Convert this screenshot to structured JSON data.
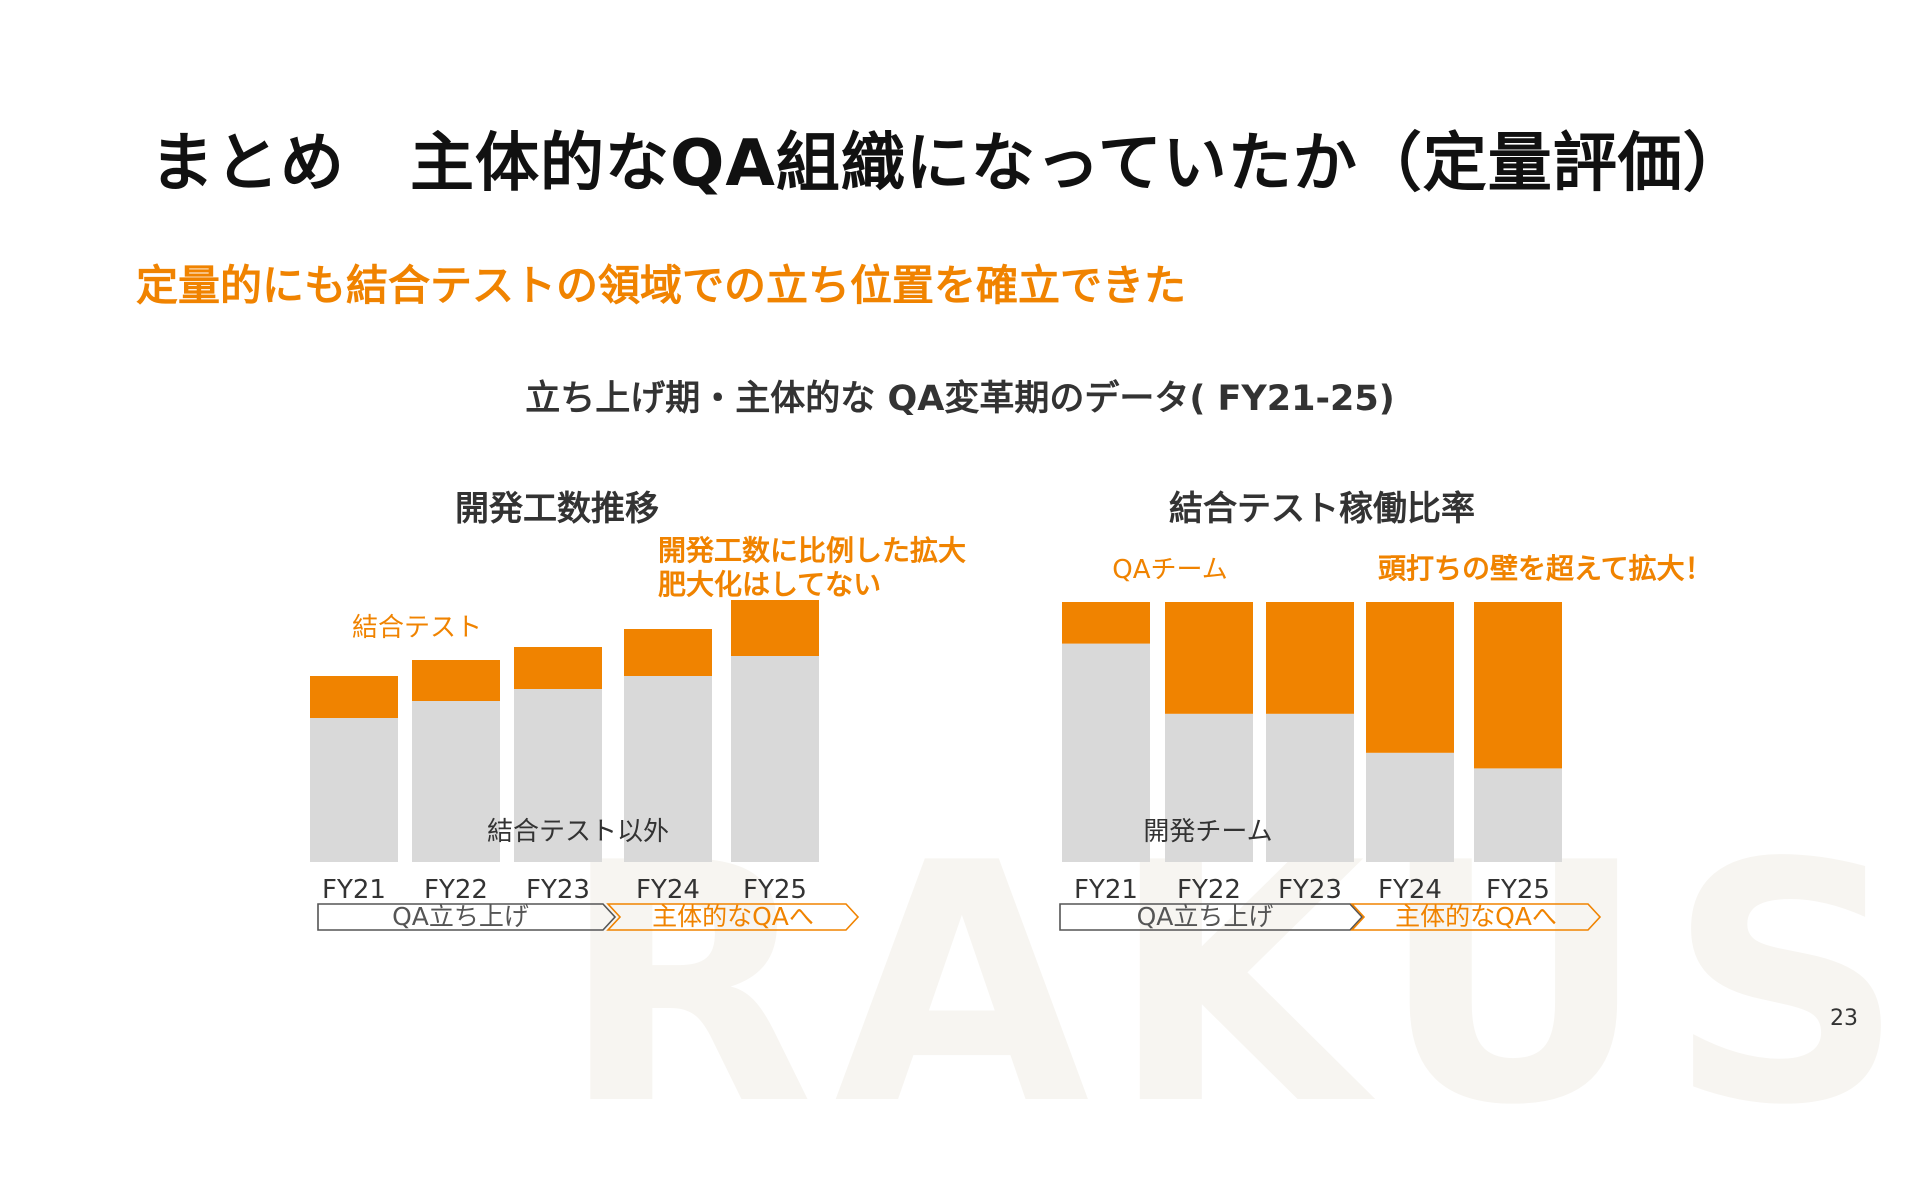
{
  "slide": {
    "title": "まとめ　主体的なQA組織になっていたか（定量評価）",
    "subtitle": "定量的にも結合テストの領域での立ち位置を確立できた",
    "data_title": "立ち上げ期・主体的な QA変革期のデータ( FY21-25)",
    "page_number": "23",
    "watermark": "RAKUS"
  },
  "colors": {
    "accent": "#f08300",
    "bar_gray": "#d9d9d9",
    "title": "#111111",
    "text": "#333333"
  },
  "chart_data": [
    {
      "type": "bar",
      "stacked": true,
      "title": "開発工数推移",
      "categories": [
        "FY21",
        "FY22",
        "FY23",
        "FY24",
        "FY25"
      ],
      "series": [
        {
          "name": "結合テスト以外",
          "color": "#d9d9d9",
          "values": [
            144,
            161,
            173,
            186,
            206
          ]
        },
        {
          "name": "結合テスト",
          "color": "#f08300",
          "values": [
            42,
            41,
            42,
            47,
            56
          ]
        }
      ],
      "ylim": [
        0,
        270
      ],
      "annotations": [
        "開発工数に比例した拡大",
        "肥大化はしてない"
      ],
      "phases": [
        {
          "label": "QA立ち上げ",
          "style": "outline-gray"
        },
        {
          "label": "主体的なQAへ",
          "style": "outline-orange"
        }
      ]
    },
    {
      "type": "bar",
      "stacked": true,
      "title": "結合テスト稼働比率",
      "categories": [
        "FY21",
        "FY22",
        "FY23",
        "FY24",
        "FY25"
      ],
      "series": [
        {
          "name": "開発チーム",
          "color": "#d9d9d9",
          "values": [
            84,
            57,
            57,
            42,
            36
          ]
        },
        {
          "name": "QAチーム",
          "color": "#f08300",
          "values": [
            16,
            43,
            43,
            58,
            64
          ]
        }
      ],
      "ylim": [
        0,
        100
      ],
      "annotations": [
        "頭打ちの壁を超えて拡大！"
      ],
      "phases": [
        {
          "label": "QA立ち上げ",
          "style": "outline-gray"
        },
        {
          "label": "主体的なQAへ",
          "style": "outline-orange"
        }
      ]
    }
  ]
}
